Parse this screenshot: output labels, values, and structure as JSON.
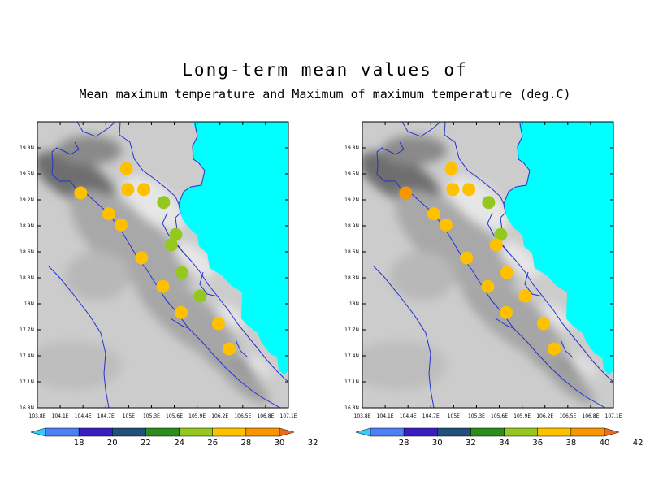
{
  "title": {
    "line1": "Long-term mean values of",
    "line2": "Mean maximum temperature and Maximum of maximum temperature (deg.C)"
  },
  "axes": {
    "lon_ticks": [
      "103.8E",
      "104.1E",
      "104.4E",
      "104.7E",
      "105E",
      "105.3E",
      "105.6E",
      "105.9E",
      "106.2E",
      "106.5E",
      "106.8E",
      "107.1E"
    ],
    "lat_ticks": [
      "16.8N",
      "17.1N",
      "17.4N",
      "17.7N",
      "18N",
      "18.3N",
      "18.6N",
      "18.9N",
      "19.2N",
      "19.5N",
      "19.8N"
    ],
    "lon_range": [
      103.8,
      107.1
    ],
    "lat_range": [
      16.8,
      20.1
    ]
  },
  "colors": {
    "sea": "#00ffff",
    "boundary": "#2233cc",
    "terrain_base": "#cccccc"
  },
  "stations": [
    {
      "lon": 104.37,
      "lat": 19.28
    },
    {
      "lon": 104.74,
      "lat": 19.04
    },
    {
      "lon": 104.97,
      "lat": 19.56
    },
    {
      "lon": 104.99,
      "lat": 19.32
    },
    {
      "lon": 105.2,
      "lat": 19.32
    },
    {
      "lon": 105.46,
      "lat": 19.17
    },
    {
      "lon": 104.9,
      "lat": 18.91
    },
    {
      "lon": 105.62,
      "lat": 18.8
    },
    {
      "lon": 105.56,
      "lat": 18.68
    },
    {
      "lon": 105.17,
      "lat": 18.53
    },
    {
      "lon": 105.7,
      "lat": 18.36
    },
    {
      "lon": 105.45,
      "lat": 18.2
    },
    {
      "lon": 105.94,
      "lat": 18.09
    },
    {
      "lon": 105.69,
      "lat": 17.9
    },
    {
      "lon": 106.18,
      "lat": 17.77
    },
    {
      "lon": 106.32,
      "lat": 17.48
    }
  ],
  "panels": [
    {
      "id": "mean-max",
      "colorbar": {
        "labels": [
          "18",
          "20",
          "22",
          "24",
          "26",
          "28",
          "30",
          "32"
        ],
        "colors": [
          "#33ccff",
          "#4f7ff5",
          "#3a1fc0",
          "#23507a",
          "#2c8c1c",
          "#94c81e",
          "#ffc000",
          "#f79600",
          "#f06a1e"
        ]
      },
      "station_colors": [
        "#ffc000",
        "#ffc000",
        "#ffc000",
        "#ffc000",
        "#ffc000",
        "#94c81e",
        "#ffc000",
        "#94c81e",
        "#94c81e",
        "#ffc000",
        "#94c81e",
        "#ffc000",
        "#94c81e",
        "#ffc000",
        "#ffc000",
        "#ffc000"
      ]
    },
    {
      "id": "max-of-max",
      "colorbar": {
        "labels": [
          "28",
          "30",
          "32",
          "34",
          "36",
          "38",
          "40",
          "42"
        ],
        "colors": [
          "#33ccff",
          "#4f7ff5",
          "#3a1fc0",
          "#23507a",
          "#2c8c1c",
          "#94c81e",
          "#ffc000",
          "#f79600",
          "#f06a1e"
        ]
      },
      "station_colors": [
        "#f79600",
        "#ffc000",
        "#ffc000",
        "#ffc000",
        "#ffc000",
        "#94c81e",
        "#ffc000",
        "#94c81e",
        "#ffc000",
        "#ffc000",
        "#ffc000",
        "#ffc000",
        "#ffc000",
        "#ffc000",
        "#ffc000",
        "#ffc000"
      ]
    }
  ]
}
